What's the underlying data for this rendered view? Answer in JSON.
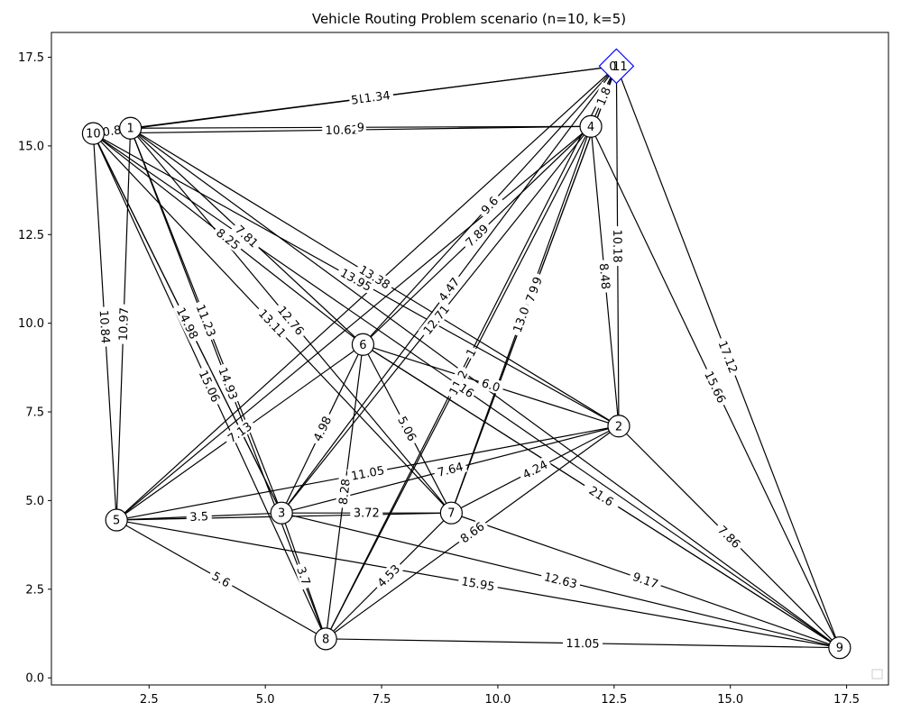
{
  "chart_data": {
    "type": "network",
    "title": "Vehicle Routing Problem scenario (n=10, k=5)",
    "xlabel": "",
    "ylabel": "",
    "xlim": [
      0.4,
      18.4
    ],
    "ylim": [
      -0.2,
      18.2
    ],
    "xticks": [
      2.5,
      5.0,
      7.5,
      10.0,
      12.5,
      15.0,
      17.5
    ],
    "xtick_labels": [
      "2.5",
      "5.0",
      "7.5",
      "10.0",
      "12.5",
      "15.0",
      "17.5"
    ],
    "yticks": [
      0.0,
      2.5,
      5.0,
      7.5,
      10.0,
      12.5,
      15.0,
      17.5
    ],
    "ytick_labels": [
      "0.0",
      "2.5",
      "5.0",
      "7.5",
      "10.0",
      "12.5",
      "15.0",
      "17.5"
    ],
    "grid": false,
    "legend": "bottom-right",
    "depot": {
      "label": "0",
      "x": 12.55,
      "y": 17.25,
      "color": "#0000ff"
    },
    "nodes": [
      {
        "id": "0",
        "label": "0",
        "x": 12.55,
        "y": 17.25
      },
      {
        "id": "1",
        "label": "1",
        "x": 2.1,
        "y": 15.5
      },
      {
        "id": "2",
        "label": "2",
        "x": 12.6,
        "y": 7.1
      },
      {
        "id": "3",
        "label": "3",
        "x": 5.35,
        "y": 4.65
      },
      {
        "id": "4",
        "label": "4",
        "x": 12.0,
        "y": 15.55
      },
      {
        "id": "5",
        "label": "5",
        "x": 1.8,
        "y": 4.45
      },
      {
        "id": "6",
        "label": "6",
        "x": 7.1,
        "y": 9.4
      },
      {
        "id": "7",
        "label": "7",
        "x": 9.0,
        "y": 4.65
      },
      {
        "id": "8",
        "label": "8",
        "x": 6.3,
        "y": 1.1
      },
      {
        "id": "9",
        "label": "9",
        "x": 17.35,
        "y": 0.85
      },
      {
        "id": "10",
        "label": "10",
        "x": 1.3,
        "y": 15.35
      },
      {
        "id": "11",
        "label": "11",
        "x": 12.55,
        "y": 17.25
      }
    ],
    "edges": [
      {
        "from": "11",
        "to": "1",
        "label": "11.34"
      },
      {
        "from": "0",
        "to": "10",
        "label": "5"
      },
      {
        "from": "4",
        "to": "10",
        "label": "10.62"
      },
      {
        "from": "4",
        "to": "1",
        "label": "9"
      },
      {
        "from": "1",
        "to": "10",
        "label": "0.8"
      },
      {
        "from": "11",
        "to": "4",
        "label": "1.8"
      },
      {
        "from": "11",
        "to": "2",
        "label": "10.18"
      },
      {
        "from": "11",
        "to": "9",
        "label": "17.12"
      },
      {
        "from": "11",
        "to": "6",
        "label": "9.6"
      },
      {
        "from": "11",
        "to": "5",
        "label": ""
      },
      {
        "from": "11",
        "to": "3",
        "label": "4.47"
      },
      {
        "from": "4",
        "to": "9",
        "label": "15.66"
      },
      {
        "from": "4",
        "to": "2",
        "label": "8.48"
      },
      {
        "from": "4",
        "to": "7",
        "label": "13.0"
      },
      {
        "from": "4",
        "to": "8",
        "label": "11.2"
      },
      {
        "from": "4",
        "to": "6",
        "label": "7.89"
      },
      {
        "from": "4",
        "to": "3",
        "label": "12.71"
      },
      {
        "from": "4",
        "to": "5",
        "label": ""
      },
      {
        "from": "10",
        "to": "5",
        "label": "10.84"
      },
      {
        "from": "1",
        "to": "5",
        "label": "10.97"
      },
      {
        "from": "10",
        "to": "3",
        "label": "11.37"
      },
      {
        "from": "1",
        "to": "3",
        "label": "11.23"
      },
      {
        "from": "10",
        "to": "8",
        "label": "15.06"
      },
      {
        "from": "1",
        "to": "8",
        "label": "14.93"
      },
      {
        "from": "10",
        "to": "7",
        "label": "13.11"
      },
      {
        "from": "1",
        "to": "7",
        "label": "12.76"
      },
      {
        "from": "10",
        "to": "6",
        "label": "8.25"
      },
      {
        "from": "1",
        "to": "6",
        "label": "7.81"
      },
      {
        "from": "10",
        "to": "2",
        "label": "13.95"
      },
      {
        "from": "1",
        "to": "2",
        "label": "13.38"
      },
      {
        "from": "10",
        "to": "9",
        "label": "16"
      },
      {
        "from": "1",
        "to": "9",
        "label": ""
      },
      {
        "from": "6",
        "to": "5",
        "label": "7.13"
      },
      {
        "from": "6",
        "to": "3",
        "label": "4.98"
      },
      {
        "from": "6",
        "to": "7",
        "label": "5.06"
      },
      {
        "from": "6",
        "to": "8",
        "label": "8.28"
      },
      {
        "from": "6",
        "to": "2",
        "label": "6.0"
      },
      {
        "from": "6",
        "to": "9",
        "label": "13.38"
      },
      {
        "from": "5",
        "to": "3",
        "label": "3.5"
      },
      {
        "from": "5",
        "to": "7",
        "label": "2"
      },
      {
        "from": "3",
        "to": "7",
        "label": "3.72"
      },
      {
        "from": "5",
        "to": "2",
        "label": "11.05"
      },
      {
        "from": "3",
        "to": "2",
        "label": "7.64"
      },
      {
        "from": "7",
        "to": "2",
        "label": "4.24"
      },
      {
        "from": "8",
        "to": "2",
        "label": "8.66"
      },
      {
        "from": "2",
        "to": "9",
        "label": "7.86"
      },
      {
        "from": "7",
        "to": "9",
        "label": "9.17"
      },
      {
        "from": "3",
        "to": "9",
        "label": "12.63"
      },
      {
        "from": "5",
        "to": "9",
        "label": "15.95"
      },
      {
        "from": "8",
        "to": "9",
        "label": "11.05"
      },
      {
        "from": "5",
        "to": "8",
        "label": "5.6"
      },
      {
        "from": "3",
        "to": "8",
        "label": "3.7"
      },
      {
        "from": "7",
        "to": "8",
        "label": "4.53"
      },
      {
        "from": "11",
        "to": "8",
        "label": "1"
      },
      {
        "from": "11",
        "to": "7",
        "label": "7.29"
      },
      {
        "from": "6",
        "to": "9",
        "label": "21.6"
      },
      {
        "from": "11",
        "to": "7",
        "label": "9"
      },
      {
        "from": "10",
        "to": "3",
        "label": "14.98"
      }
    ]
  }
}
